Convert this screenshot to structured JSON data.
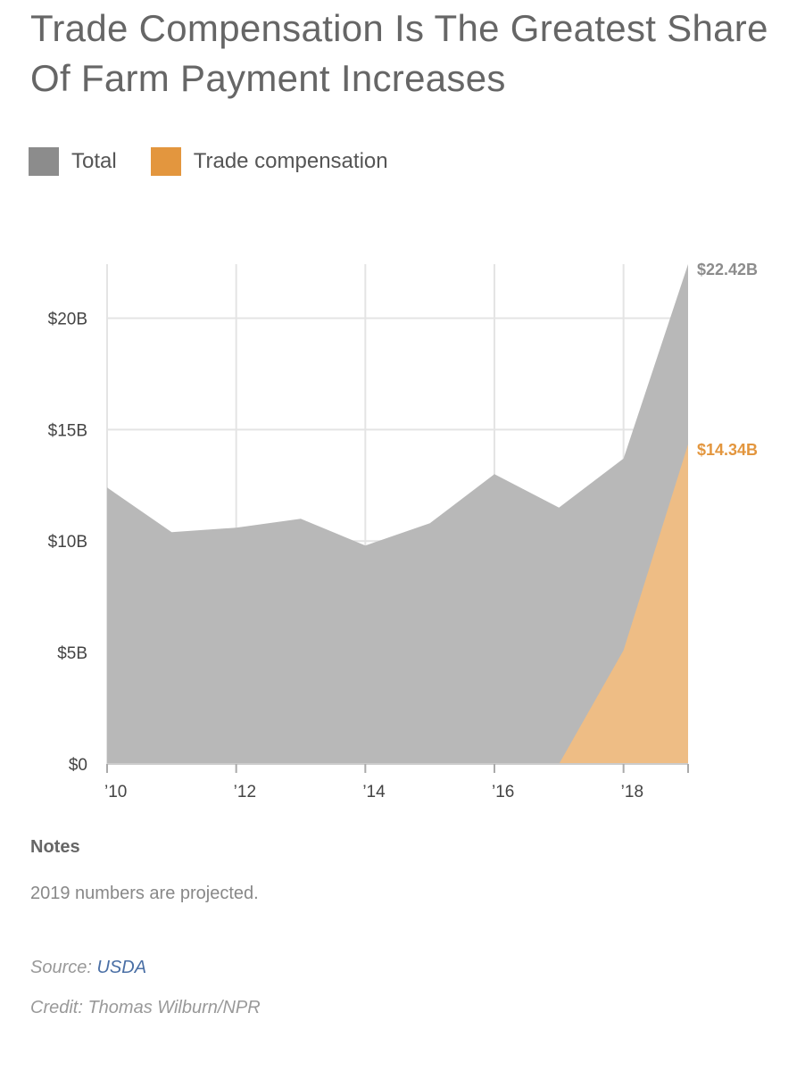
{
  "header": {
    "title": "Trade Compensation Is The Greatest Share Of Farm Payment Increases"
  },
  "legend": {
    "items": [
      {
        "label": "Total",
        "color": "#8c8c8c"
      },
      {
        "label": "Trade compensation",
        "color": "#e3963e"
      }
    ]
  },
  "chart_data": {
    "type": "area",
    "title": "Trade Compensation Is The Greatest Share Of Farm Payment Increases",
    "xlabel": "",
    "ylabel": "",
    "x": [
      2010,
      2011,
      2012,
      2013,
      2014,
      2015,
      2016,
      2017,
      2018,
      2019
    ],
    "x_tick_values": [
      2010,
      2012,
      2014,
      2016,
      2018
    ],
    "x_tick_labels": [
      "’10",
      "’12",
      "’14",
      "’16",
      "’18"
    ],
    "y_tick_values": [
      0,
      5,
      10,
      15,
      20
    ],
    "y_tick_labels": [
      "$0",
      "$5B",
      "$10B",
      "$15B",
      "$20B"
    ],
    "xlim": [
      2010,
      2019
    ],
    "ylim": [
      0,
      22.42
    ],
    "grid": true,
    "legend_position": "top-left",
    "series": [
      {
        "name": "Total",
        "color": "#b8b8b8",
        "label_color": "#8c8c8c",
        "values": [
          12.4,
          10.4,
          10.6,
          11.0,
          9.8,
          10.8,
          13.0,
          11.5,
          13.7,
          22.42
        ],
        "end_label": "$22.42B"
      },
      {
        "name": "Trade compensation",
        "color": "#eebd85",
        "label_color": "#e3963e",
        "values": [
          0,
          0,
          0,
          0,
          0,
          0,
          0,
          0,
          5.1,
          14.34
        ],
        "end_label": "$14.34B"
      }
    ]
  },
  "notes": {
    "heading": "Notes",
    "text": "2019 numbers are projected."
  },
  "source": {
    "prefix": "Source: ",
    "link_label": "USDA"
  },
  "credit": {
    "text": "Credit: Thomas Wilburn/NPR"
  }
}
